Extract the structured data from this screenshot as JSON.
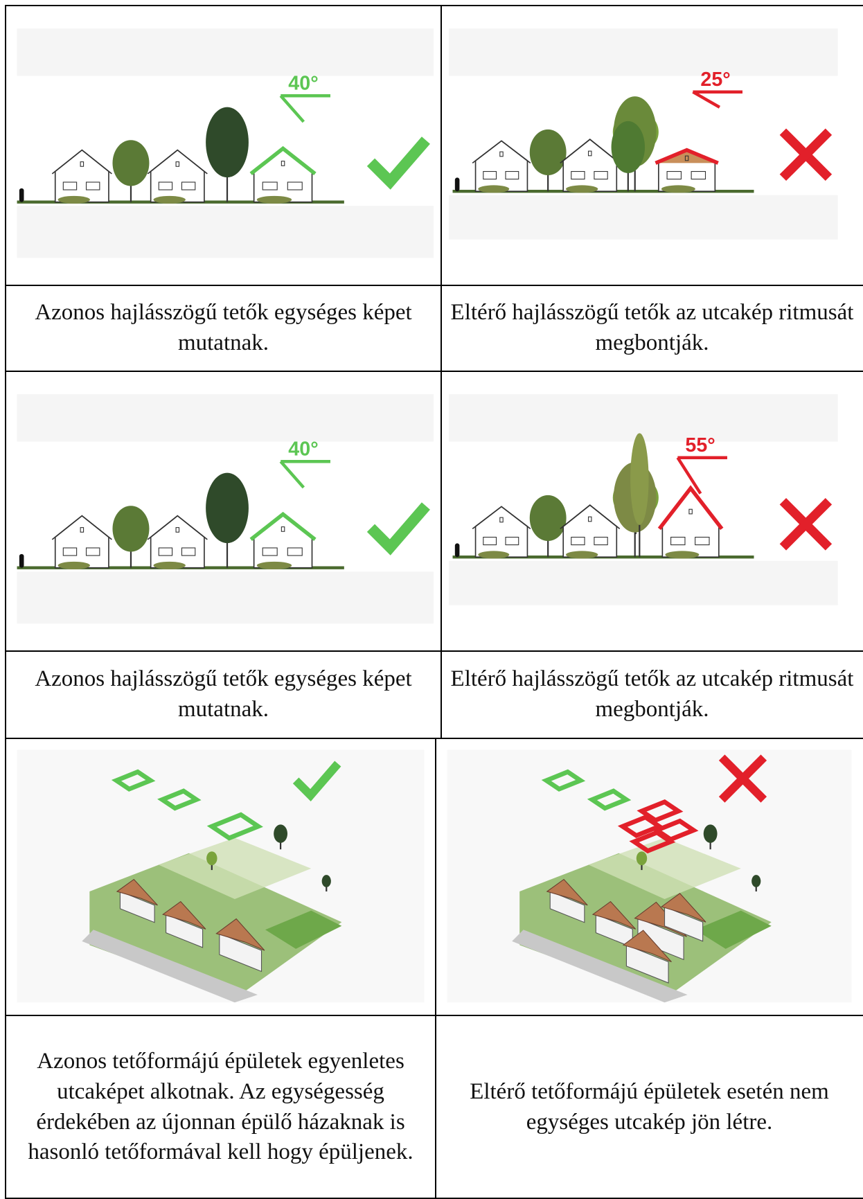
{
  "rows": [
    {
      "left": {
        "angle": "40°",
        "caption": "Azonos hajlásszögű tetők egységes képet mutatnak."
      },
      "right": {
        "angle": "25°",
        "caption": "Eltérő hajlásszögű tetők az utcakép ritmusát megbontják."
      }
    },
    {
      "left": {
        "angle": "40°",
        "caption": "Azonos hajlásszögű tetők egységes képet mutatnak."
      },
      "right": {
        "angle": "55°",
        "caption": "Eltérő hajlásszögű tetők az utcakép ritmusát megbontják."
      }
    },
    {
      "left": {
        "caption": "Azonos tetőformájú épületek egyenletes utcaképet alkotnak. Az egységesség érdekében az újonnan épülő házaknak is hasonló tetőformával kell hogy épüljenek."
      },
      "right": {
        "caption": "Eltérő tetőformájú épületek esetén nem egységes utcakép jön létre."
      }
    }
  ]
}
